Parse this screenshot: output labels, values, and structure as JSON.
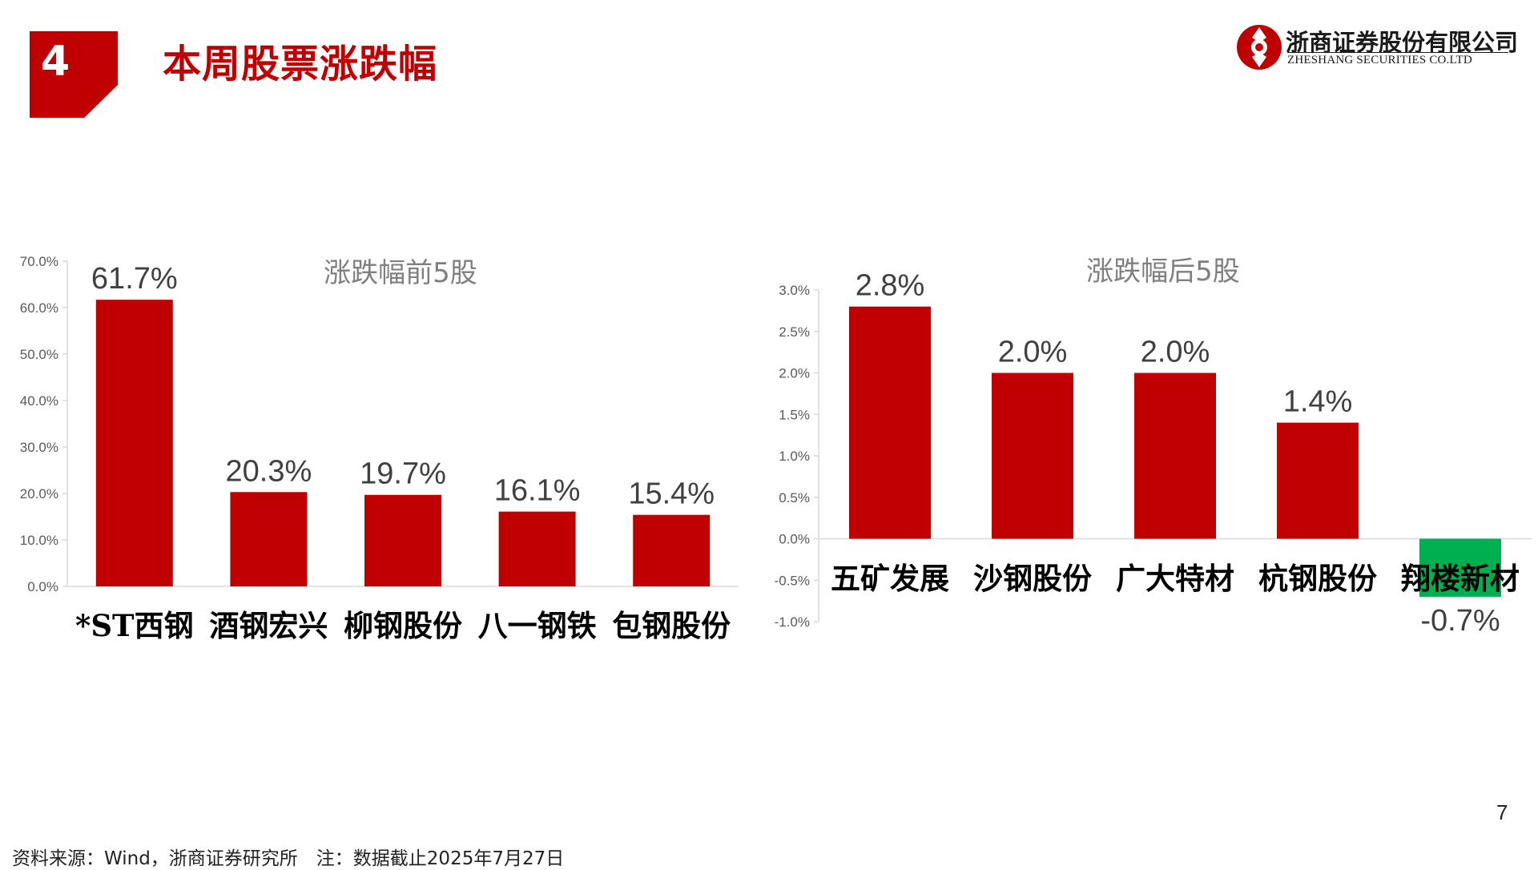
{
  "header": {
    "section_number": "4",
    "title": "本周股票涨跌幅",
    "logo_cn": "浙商证券股份有限公司",
    "logo_en": "ZHESHANG SECURITIES CO.LTD"
  },
  "colors": {
    "brand_red": "#c00000",
    "negative_green": "#00b050",
    "axis_grey": "#d9d9d9"
  },
  "chart_data": [
    {
      "type": "bar",
      "title": "涨跌幅前5股",
      "categories": [
        "*ST西钢",
        "酒钢宏兴",
        "柳钢股份",
        "八一钢铁",
        "包钢股份"
      ],
      "values": [
        61.7,
        20.3,
        19.7,
        16.1,
        15.4
      ],
      "value_labels": [
        "61.7%",
        "20.3%",
        "19.7%",
        "16.1%",
        "15.4%"
      ],
      "ylim": [
        0,
        70
      ],
      "yticks": [
        0,
        10,
        20,
        30,
        40,
        50,
        60,
        70
      ],
      "ytick_labels": [
        "0.0%",
        "10.0%",
        "20.0%",
        "30.0%",
        "40.0%",
        "50.0%",
        "60.0%",
        "70.0%"
      ],
      "xlabel": "",
      "ylabel": "",
      "grid": false,
      "legend": "none"
    },
    {
      "type": "bar",
      "title": "涨跌幅后5股",
      "categories": [
        "五矿发展",
        "沙钢股份",
        "广大特材",
        "杭钢股份",
        "翔楼新材"
      ],
      "values": [
        2.8,
        2.0,
        2.0,
        1.4,
        -0.7
      ],
      "value_labels": [
        "2.8%",
        "2.0%",
        "2.0%",
        "1.4%",
        "-0.7%"
      ],
      "ylim": [
        -1.0,
        3.0
      ],
      "yticks": [
        -1.0,
        -0.5,
        0.0,
        0.5,
        1.0,
        1.5,
        2.0,
        2.5,
        3.0
      ],
      "ytick_labels": [
        "-1.0%",
        "-0.5%",
        "0.0%",
        "0.5%",
        "1.0%",
        "1.5%",
        "2.0%",
        "2.5%",
        "3.0%"
      ],
      "xlabel": "",
      "ylabel": "",
      "grid": false,
      "legend": "none"
    }
  ],
  "footer": {
    "page_number": "7",
    "source": "资料来源：Wind，浙商证券研究所　注：数据截止2025年7月27日"
  }
}
